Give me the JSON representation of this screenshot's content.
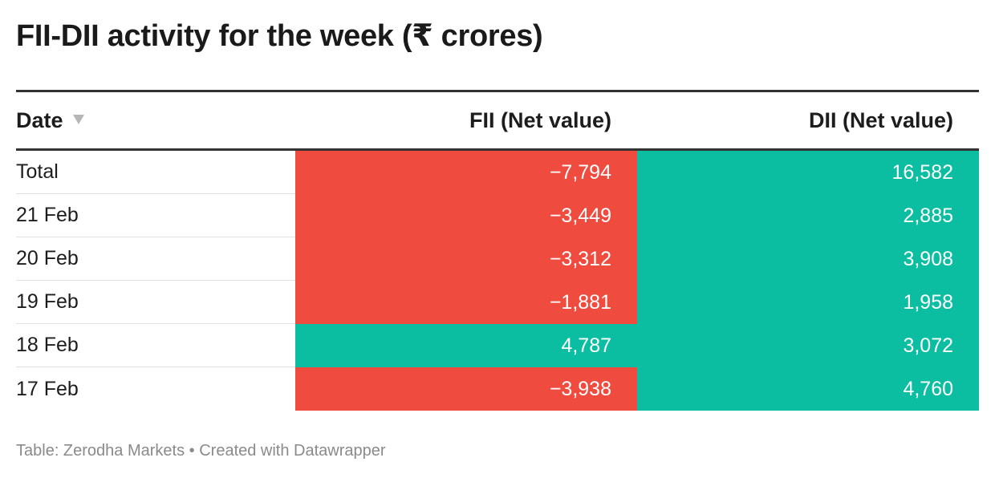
{
  "title": "FII-DII activity for the week (₹ crores)",
  "columns": {
    "date": "Date",
    "fii": "FII (Net value)",
    "dii": "DII (Net value)"
  },
  "colors": {
    "negative": "#ef4b3f",
    "positive": "#0bbea1"
  },
  "rows": [
    {
      "date": "Total",
      "fii": "−7,794",
      "dii": "16,582"
    },
    {
      "date": "21 Feb",
      "fii": "−3,449",
      "dii": "2,885"
    },
    {
      "date": "20 Feb",
      "fii": "−3,312",
      "dii": "3,908"
    },
    {
      "date": "19 Feb",
      "fii": "−1,881",
      "dii": "1,958"
    },
    {
      "date": "18 Feb",
      "fii": "4,787",
      "dii": "3,072"
    },
    {
      "date": "17 Feb",
      "fii": "−3,938",
      "dii": "4,760"
    }
  ],
  "footer": "Table: Zerodha Markets • Created with Datawrapper",
  "chart_data": {
    "type": "table",
    "title": "FII-DII activity for the week (₹ crores)",
    "columns": [
      "Date",
      "FII (Net value)",
      "DII (Net value)"
    ],
    "categories": [
      "Total",
      "21 Feb",
      "20 Feb",
      "19 Feb",
      "18 Feb",
      "17 Feb"
    ],
    "series": [
      {
        "name": "FII (Net value)",
        "values": [
          -7794,
          -3449,
          -3312,
          -1881,
          4787,
          -3938
        ]
      },
      {
        "name": "DII (Net value)",
        "values": [
          16582,
          2885,
          3908,
          1958,
          3072,
          4760
        ]
      }
    ]
  }
}
